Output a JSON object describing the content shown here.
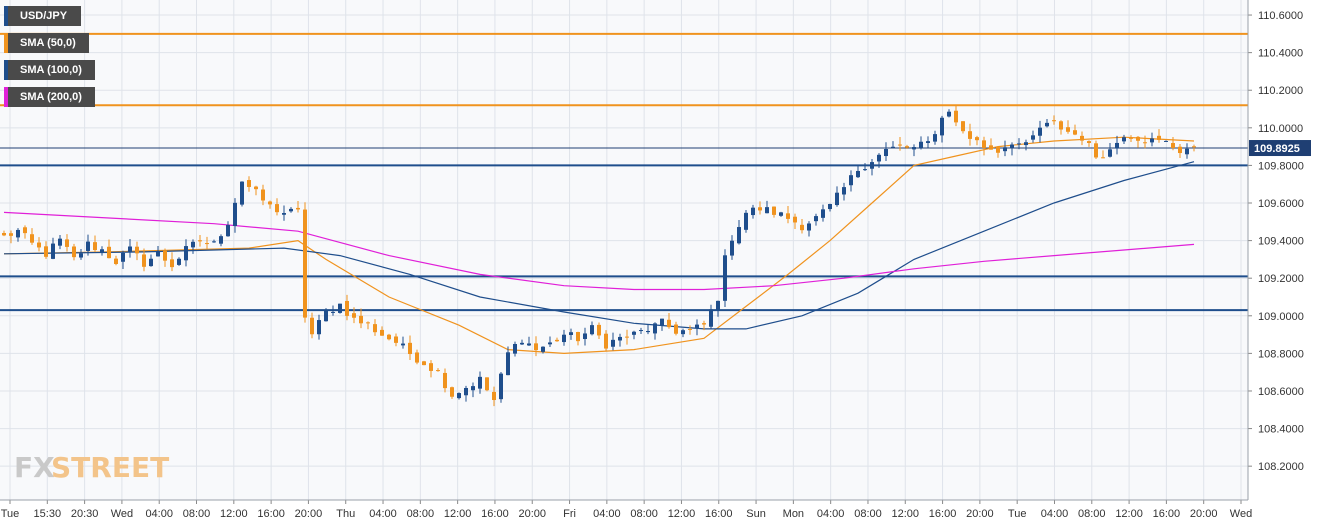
{
  "legend": [
    {
      "label": "USD/JPY",
      "color": "#1f4e8c"
    },
    {
      "label": "SMA (50,0)",
      "color": "#f0931e"
    },
    {
      "label": "SMA (100,0)",
      "color": "#1f4e8c"
    },
    {
      "label": "SMA (200,0)",
      "color": "#e020d8"
    }
  ],
  "watermark": {
    "fx": "FX",
    "street": "STREET"
  },
  "colors": {
    "bull": "#1f4e8c",
    "bear": "#f0931e",
    "sma50": "#f0931e",
    "sma100": "#1f4e8c",
    "sma200": "#e020d8",
    "resistance": "#f0931e",
    "support": "#1f4e8c",
    "grid": "#dfe3ea",
    "price_tag_bg": "#1f3f73"
  },
  "chart_data": {
    "type": "candlestick",
    "title": "",
    "xlabel": "",
    "ylabel": "",
    "ylim": [
      108.02,
      110.68
    ],
    "grid": true,
    "y_ticks": [
      "110.6000",
      "110.4000",
      "110.2000",
      "110.0000",
      "109.8000",
      "109.6000",
      "109.4000",
      "109.2000",
      "109.0000",
      "108.8000",
      "108.6000",
      "108.4000",
      "108.2000"
    ],
    "x_ticks": [
      "Tue",
      "15:30",
      "20:30",
      "Wed",
      "04:00",
      "08:00",
      "12:00",
      "16:00",
      "20:00",
      "Thu",
      "04:00",
      "08:00",
      "12:00",
      "16:00",
      "20:00",
      "Fri",
      "04:00",
      "08:00",
      "12:00",
      "16:00",
      "Sun",
      "Mon",
      "04:00",
      "08:00",
      "12:00",
      "16:00",
      "20:00",
      "Tue",
      "04:00",
      "08:00",
      "12:00",
      "16:00",
      "20:00",
      "Wed"
    ],
    "current_price": "109.8925",
    "current_price_value": 109.8925,
    "horizontal_levels": [
      {
        "value": 110.5,
        "kind": "resistance"
      },
      {
        "value": 110.12,
        "kind": "resistance"
      },
      {
        "value": 109.8,
        "kind": "support"
      },
      {
        "value": 109.21,
        "kind": "support"
      },
      {
        "value": 109.03,
        "kind": "support"
      }
    ],
    "close_path": [
      [
        0,
        109.42
      ],
      [
        2,
        109.45
      ],
      [
        4,
        109.38
      ],
      [
        6,
        109.33
      ],
      [
        8,
        109.4
      ],
      [
        10,
        109.3
      ],
      [
        12,
        109.38
      ],
      [
        14,
        109.35
      ],
      [
        16,
        109.29
      ],
      [
        18,
        109.35
      ],
      [
        20,
        109.28
      ],
      [
        22,
        109.33
      ],
      [
        24,
        109.27
      ],
      [
        26,
        109.35
      ],
      [
        28,
        109.4
      ],
      [
        30,
        109.38
      ],
      [
        32,
        109.5
      ],
      [
        34,
        109.72
      ],
      [
        36,
        109.65
      ],
      [
        38,
        109.58
      ],
      [
        40,
        109.55
      ],
      [
        42,
        109.55
      ],
      [
        43,
        109.0
      ],
      [
        44,
        108.9
      ],
      [
        46,
        109.02
      ],
      [
        48,
        109.06
      ],
      [
        50,
        108.98
      ],
      [
        52,
        108.95
      ],
      [
        54,
        108.9
      ],
      [
        56,
        108.86
      ],
      [
        58,
        108.8
      ],
      [
        60,
        108.75
      ],
      [
        62,
        108.7
      ],
      [
        64,
        108.58
      ],
      [
        66,
        108.62
      ],
      [
        68,
        108.66
      ],
      [
        70,
        108.55
      ],
      [
        72,
        108.8
      ],
      [
        74,
        108.88
      ],
      [
        76,
        108.82
      ],
      [
        78,
        108.85
      ],
      [
        80,
        108.9
      ],
      [
        82,
        108.88
      ],
      [
        84,
        108.93
      ],
      [
        86,
        108.85
      ],
      [
        88,
        108.88
      ],
      [
        90,
        108.9
      ],
      [
        92,
        108.93
      ],
      [
        94,
        108.96
      ],
      [
        96,
        108.92
      ],
      [
        98,
        108.92
      ],
      [
        100,
        108.95
      ],
      [
        102,
        109.1
      ],
      [
        103,
        109.3
      ],
      [
        104,
        109.42
      ],
      [
        106,
        109.55
      ],
      [
        108,
        109.57
      ],
      [
        110,
        109.55
      ],
      [
        112,
        109.52
      ],
      [
        114,
        109.48
      ],
      [
        116,
        109.52
      ],
      [
        118,
        109.58
      ],
      [
        120,
        109.68
      ],
      [
        122,
        109.78
      ],
      [
        124,
        109.83
      ],
      [
        126,
        109.88
      ],
      [
        128,
        109.9
      ],
      [
        130,
        109.89
      ],
      [
        132,
        109.92
      ],
      [
        134,
        110.05
      ],
      [
        135,
        110.1
      ],
      [
        136,
        110.02
      ],
      [
        138,
        109.95
      ],
      [
        140,
        109.9
      ],
      [
        142,
        109.88
      ],
      [
        144,
        109.93
      ],
      [
        146,
        109.9
      ],
      [
        148,
        110.0
      ],
      [
        150,
        110.02
      ],
      [
        152,
        109.98
      ],
      [
        154,
        109.95
      ],
      [
        156,
        109.85
      ],
      [
        158,
        109.88
      ],
      [
        160,
        109.97
      ],
      [
        162,
        109.95
      ],
      [
        164,
        109.93
      ],
      [
        166,
        109.92
      ],
      [
        168,
        109.88
      ],
      [
        170,
        109.9
      ]
    ],
    "series": [
      {
        "name": "SMA (50,0)",
        "key": "sma50",
        "points": [
          [
            0,
            109.33
          ],
          [
            15,
            109.34
          ],
          [
            25,
            109.35
          ],
          [
            35,
            109.36
          ],
          [
            42,
            109.4
          ],
          [
            46,
            109.3
          ],
          [
            55,
            109.1
          ],
          [
            65,
            108.95
          ],
          [
            72,
            108.82
          ],
          [
            80,
            108.8
          ],
          [
            90,
            108.82
          ],
          [
            100,
            108.88
          ],
          [
            106,
            109.05
          ],
          [
            112,
            109.22
          ],
          [
            118,
            109.4
          ],
          [
            124,
            109.6
          ],
          [
            130,
            109.8
          ],
          [
            136,
            109.85
          ],
          [
            142,
            109.9
          ],
          [
            150,
            109.93
          ],
          [
            160,
            109.95
          ],
          [
            170,
            109.93
          ]
        ]
      },
      {
        "name": "SMA (100,0)",
        "key": "sma100",
        "points": [
          [
            0,
            109.33
          ],
          [
            20,
            109.34
          ],
          [
            30,
            109.35
          ],
          [
            40,
            109.36
          ],
          [
            48,
            109.32
          ],
          [
            58,
            109.22
          ],
          [
            68,
            109.1
          ],
          [
            80,
            109.02
          ],
          [
            90,
            108.96
          ],
          [
            100,
            108.93
          ],
          [
            106,
            108.93
          ],
          [
            114,
            109.0
          ],
          [
            122,
            109.12
          ],
          [
            130,
            109.3
          ],
          [
            140,
            109.45
          ],
          [
            150,
            109.6
          ],
          [
            160,
            109.72
          ],
          [
            170,
            109.82
          ]
        ]
      },
      {
        "name": "SMA (200,0)",
        "key": "sma200",
        "points": [
          [
            0,
            109.55
          ],
          [
            15,
            109.52
          ],
          [
            30,
            109.49
          ],
          [
            42,
            109.45
          ],
          [
            55,
            109.32
          ],
          [
            68,
            109.22
          ],
          [
            80,
            109.16
          ],
          [
            90,
            109.14
          ],
          [
            100,
            109.14
          ],
          [
            110,
            109.16
          ],
          [
            120,
            109.2
          ],
          [
            130,
            109.25
          ],
          [
            140,
            109.29
          ],
          [
            150,
            109.32
          ],
          [
            160,
            109.35
          ],
          [
            170,
            109.38
          ]
        ]
      }
    ]
  }
}
